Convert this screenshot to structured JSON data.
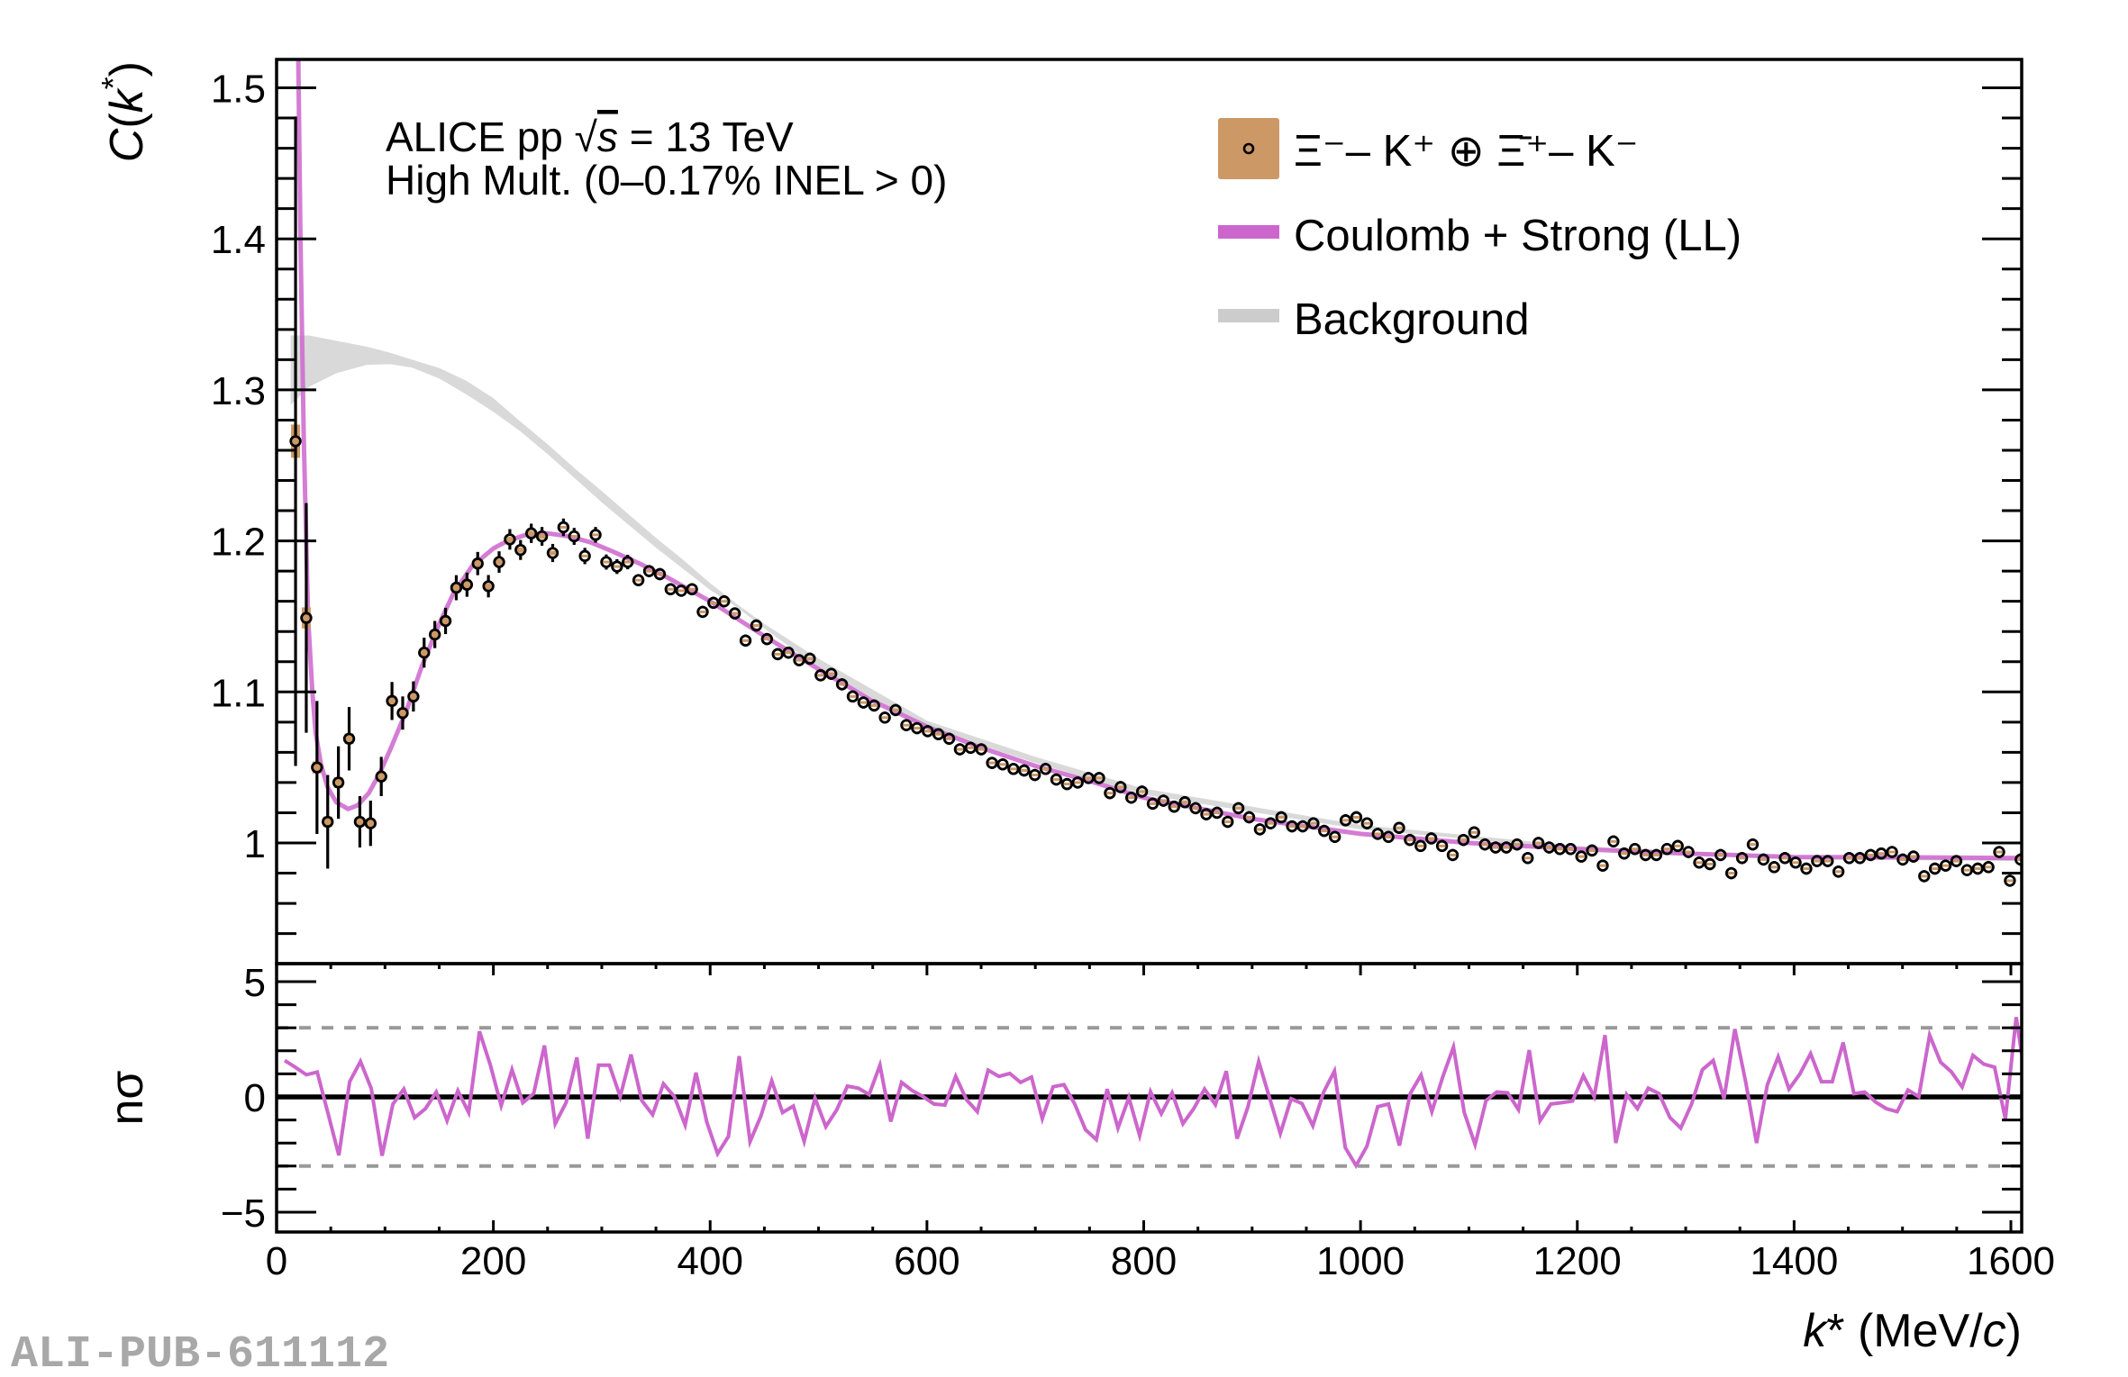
{
  "chart_data": [
    {
      "type": "scatter",
      "panel": "correlation function",
      "ylabel": {
        "parts": [
          "C",
          "(",
          "k",
          "*",
          ")"
        ]
      },
      "ylim": [
        0.92,
        1.519
      ],
      "xlim": [
        0,
        1610
      ],
      "yticks": [
        1,
        1.1,
        1.2,
        1.3,
        1.4,
        1.5
      ],
      "yticklabels": [
        "1",
        "1.1",
        "1.2",
        "1.3",
        "1.4",
        "1.5"
      ],
      "annotation": {
        "line1_parts": [
          "ALICE pp √",
          "s",
          " = 13 TeV"
        ],
        "line2": "High Mult. (0–0.17% INEL > 0)"
      },
      "legend": {
        "placement": "top-right",
        "entries": [
          {
            "label": "Ξ⁻– K⁺ ⊕ Ξ̄⁺– K⁻",
            "kind": "data",
            "color": "#CC9966"
          },
          {
            "label": "Coulomb + Strong (LL)",
            "kind": "line",
            "color": "#CC66CC"
          },
          {
            "label": "Background",
            "kind": "band",
            "color": "#CCCCCC"
          }
        ]
      },
      "data_series": {
        "name": "Ξ⁻– K⁺ ⊕ Ξ̄⁺– K⁻",
        "k_first": 17.5,
        "k_step": 9.885,
        "y": [
          1.266,
          1.149,
          1.05,
          1.014,
          1.04,
          1.069,
          1.014,
          1.013,
          1.044,
          1.094,
          1.086,
          1.097,
          1.126,
          1.138,
          1.147,
          1.169,
          1.171,
          1.185,
          1.17,
          1.186,
          1.201,
          1.194,
          1.205,
          1.203,
          1.192,
          1.209,
          1.203,
          1.19,
          1.204,
          1.186,
          1.183,
          1.186,
          1.174,
          1.18,
          1.178,
          1.168,
          1.167,
          1.168,
          1.153,
          1.159,
          1.16,
          1.152,
          1.134,
          1.144,
          1.135,
          1.125,
          1.126,
          1.121,
          1.122,
          1.111,
          1.112,
          1.105,
          1.097,
          1.093,
          1.091,
          1.083,
          1.088,
          1.078,
          1.076,
          1.074,
          1.072,
          1.069,
          1.062,
          1.063,
          1.062,
          1.053,
          1.052,
          1.049,
          1.048,
          1.045,
          1.049,
          1.042,
          1.039,
          1.04,
          1.043,
          1.043,
          1.033,
          1.037,
          1.03,
          1.034,
          1.026,
          1.028,
          1.024,
          1.027,
          1.023,
          1.019,
          1.02,
          1.014,
          1.023,
          1.017,
          1.009,
          1.013,
          1.017,
          1.011,
          1.011,
          1.013,
          1.008,
          1.004,
          1.015,
          1.017,
          1.013,
          1.006,
          1.004,
          1.01,
          1.002,
          0.998,
          1.003,
          0.998,
          0.992,
          1.002,
          1.007,
          0.999,
          0.997,
          0.997,
          0.999,
          0.99,
          1.0,
          0.997,
          0.996,
          0.996,
          0.991,
          0.995,
          0.985,
          1.001,
          0.993,
          0.996,
          0.992,
          0.992,
          0.996,
          0.998,
          0.994,
          0.987,
          0.986,
          0.992,
          0.98,
          0.99,
          0.999,
          0.989,
          0.984,
          0.99,
          0.987,
          0.983,
          0.988,
          0.988,
          0.981,
          0.99,
          0.99,
          0.992,
          0.993,
          0.994,
          0.989,
          0.991,
          0.978,
          0.983,
          0.985,
          0.988,
          0.982,
          0.983,
          0.984,
          0.994,
          0.975,
          0.989
        ],
        "y_err_first": [
          0.215,
          0.076,
          0.044,
          0.031,
          0.024,
          0.021,
          0.017,
          0.015,
          0.013,
          0.0126,
          0.011,
          0.01,
          0.0099,
          0.009,
          0.0087,
          0.0083,
          0.008,
          0.0077,
          0.0074,
          0.0071,
          0.0068,
          0.0066,
          0.0064,
          0.0062,
          0.006,
          0.0058,
          0.0056,
          0.0054,
          0.0052,
          0.005,
          0.0049,
          0.0048
        ],
        "y_err_rest": 0.004,
        "sys_first": [
          0.011,
          0.007,
          0.004,
          0.0035,
          0.0035,
          0.0035,
          0.003,
          0.003,
          0.003,
          0.003,
          0.0028,
          0.0028,
          0.0026,
          0.0026,
          0.0025,
          0.0024,
          0.0023,
          0.0022,
          0.0021,
          0.002,
          0.0019,
          0.0018,
          0.0017,
          0.0016,
          0.0015
        ],
        "sys_rest": 0.0008,
        "color": "#CC9966"
      },
      "fit_curve": {
        "name": "Coulomb + Strong (LL)",
        "color": "#CC66CC",
        "k": [
          18,
          20,
          22,
          25,
          29,
          33,
          36,
          41,
          47,
          55,
          66,
          75,
          85,
          95,
          105,
          120,
          134,
          150,
          163,
          180,
          200,
          213,
          230,
          250,
          270,
          290,
          310,
          335,
          360,
          400,
          450,
          500,
          550,
          600,
          650,
          700,
          750,
          800,
          900,
          1000,
          1100,
          1200,
          1300,
          1400,
          1500,
          1610
        ],
        "y": [
          1.62,
          1.52,
          1.4,
          1.27,
          1.15,
          1.1,
          1.073,
          1.052,
          1.037,
          1.027,
          1.0225,
          1.025,
          1.033,
          1.046,
          1.062,
          1.088,
          1.117,
          1.145,
          1.165,
          1.183,
          1.195,
          1.2,
          1.204,
          1.205,
          1.203,
          1.199,
          1.193,
          1.185,
          1.176,
          1.16,
          1.137,
          1.115,
          1.094,
          1.077,
          1.063,
          1.051,
          1.041,
          1.03,
          1.016,
          1.006,
          1.0,
          0.996,
          0.993,
          0.9907,
          0.9905,
          0.99
        ]
      },
      "background_band": {
        "name": "Background",
        "color": "#D9D9D9",
        "k": [
          13,
          30,
          55,
          83,
          105,
          125,
          150,
          175,
          200,
          225,
          250,
          275,
          300,
          325,
          350,
          375,
          400,
          425,
          450,
          500,
          600,
          700,
          800,
          1000,
          1200,
          1400,
          1610
        ],
        "upper": [
          1.336,
          1.336,
          1.3325,
          1.3286,
          1.3245,
          1.32,
          1.3145,
          1.306,
          1.2945,
          1.279,
          1.264,
          1.248,
          1.233,
          1.2175,
          1.202,
          1.1875,
          1.172,
          1.158,
          1.145,
          1.122,
          1.081,
          1.057,
          1.036,
          1.012,
          0.998,
          0.991,
          0.99
        ],
        "lower": [
          1.29,
          1.302,
          1.311,
          1.3166,
          1.317,
          1.3147,
          1.3075,
          1.297,
          1.2855,
          1.2725,
          1.2575,
          1.2415,
          1.2255,
          1.2105,
          1.1955,
          1.1815,
          1.1675,
          1.156,
          1.142,
          1.116,
          1.076,
          1.053,
          1.032,
          1.009,
          0.996,
          0.989,
          0.988
        ]
      }
    },
    {
      "type": "line",
      "panel": "deviation",
      "ylabel": "nσ",
      "ylim": [
        -5.82,
        5.82
      ],
      "xlim": [
        0,
        1610
      ],
      "yticks": [
        -5,
        0,
        5
      ],
      "yticklabels": [
        "−5",
        "0",
        "5"
      ],
      "reference_lines": {
        "zero": 0,
        "dashed": [
          3,
          -3
        ]
      },
      "xlabel": {
        "parts": [
          "k",
          "* (MeV/",
          "c",
          ")"
        ]
      },
      "xticks": [
        0,
        200,
        400,
        600,
        800,
        1000,
        1200,
        1400,
        1600
      ],
      "xticklabels": [
        "0",
        "200",
        "400",
        "600",
        "800",
        "1000",
        "1200",
        "1400",
        "1600"
      ],
      "series": {
        "name": "nσ",
        "color": "#CC66CC",
        "k_first": 7.5,
        "k_step": 9.984,
        "y": [
          1.58,
          1.28,
          0.96,
          1.08,
          -0.72,
          -2.53,
          0.66,
          1.54,
          0.36,
          -2.55,
          -0.31,
          0.34,
          -0.9,
          -0.51,
          0.21,
          -1.03,
          0.27,
          -0.68,
          2.84,
          1.38,
          -0.38,
          1.18,
          -0.25,
          0.14,
          2.23,
          -1.16,
          -0.25,
          1.71,
          -1.81,
          1.38,
          1.38,
          0.01,
          1.84,
          -0.16,
          -0.77,
          0.57,
          0.01,
          -1.22,
          1.05,
          -1.09,
          -2.46,
          -1.72,
          1.77,
          -1.94,
          -0.83,
          0.7,
          -0.68,
          -0.4,
          -1.93,
          -0.05,
          -1.29,
          -0.57,
          0.47,
          0.38,
          0.1,
          1.38,
          -1.07,
          0.63,
          0.27,
          0.01,
          -0.31,
          -0.35,
          0.89,
          -0.12,
          -0.64,
          1.16,
          0.89,
          1.02,
          0.63,
          0.86,
          -0.94,
          0.44,
          0.53,
          -0.31,
          -1.42,
          -1.85,
          0.34,
          -1.35,
          -0.03,
          -1.68,
          0.23,
          -0.73,
          0.18,
          -1.16,
          -0.51,
          0.34,
          -0.34,
          1.12,
          -1.81,
          -0.44,
          1.54,
          -0.03,
          -1.59,
          -0.08,
          -0.29,
          -1.25,
          0.21,
          1.12,
          -2.2,
          -2.98,
          -2.14,
          -0.42,
          -0.31,
          -2.11,
          0.14,
          0.95,
          -0.64,
          0.86,
          2.16,
          -0.68,
          -2.07,
          -0.16,
          0.21,
          0.18,
          -0.55,
          2.03,
          -1.03,
          -0.31,
          -0.25,
          -0.18,
          0.92,
          0.01,
          2.68,
          -2.0,
          0.1,
          -0.51,
          0.38,
          0.14,
          -0.9,
          -1.35,
          -0.31,
          1.18,
          1.58,
          -0.08,
          2.94,
          0.66,
          -2.0,
          0.53,
          1.74,
          0.34,
          0.99,
          1.88,
          0.66,
          0.66,
          2.36,
          0.14,
          0.21,
          -0.22,
          -0.51,
          -0.64,
          0.3,
          0.01,
          2.68,
          1.51,
          1.09,
          0.43,
          1.8,
          1.42,
          1.29,
          -0.96,
          3.46,
          0.3
        ]
      }
    }
  ],
  "watermark": "ALI-PUB-611112"
}
